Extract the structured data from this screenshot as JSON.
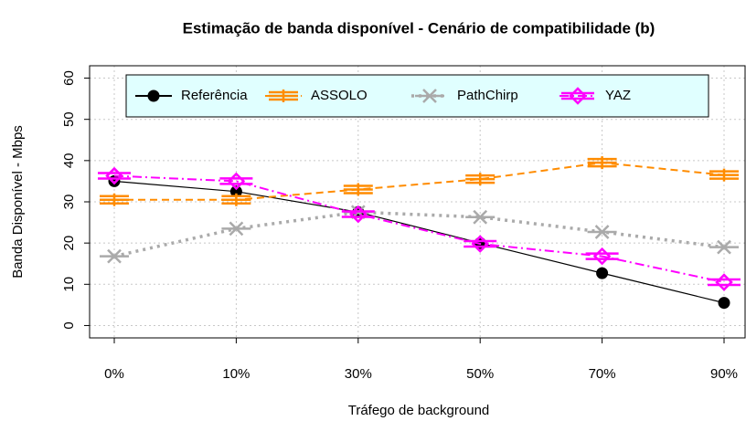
{
  "chart_data": {
    "type": "line",
    "title": "Estimação de banda disponível - Cenário de compatibilidade (b)",
    "x_label": "Tráfego de background",
    "y_label": "Banda Disponível - Mbps",
    "categories": [
      "0%",
      "10%",
      "30%",
      "50%",
      "70%",
      "90%"
    ],
    "series": [
      {
        "name": "Referência",
        "color": "#000000",
        "dash": "none",
        "marker": "circle",
        "values": [
          35,
          32.5,
          27.5,
          20,
          12.7,
          5.5
        ]
      },
      {
        "name": "ASSOLO",
        "color": "#ff8c00",
        "dash": "8 5",
        "marker": "plus",
        "values": [
          30.5,
          30.5,
          33,
          35.5,
          39.5,
          36.5
        ]
      },
      {
        "name": "PathChirp",
        "color": "#aaaaaa",
        "dash": "3 5",
        "marker": "cross",
        "values": [
          16.8,
          23.5,
          27.5,
          26.3,
          22.7,
          19
        ]
      },
      {
        "name": "YAZ",
        "color": "#ff00ff",
        "dash": "10 4 2 4",
        "marker": "diamond",
        "values": [
          36.3,
          35,
          27,
          19.8,
          16.8,
          10.5
        ]
      }
    ],
    "ylim": [
      -3,
      63
    ],
    "yticks": [
      0,
      10,
      20,
      30,
      40,
      50,
      60
    ],
    "grid": true,
    "legend_position": "top",
    "legend_fill": "#e0ffff"
  }
}
